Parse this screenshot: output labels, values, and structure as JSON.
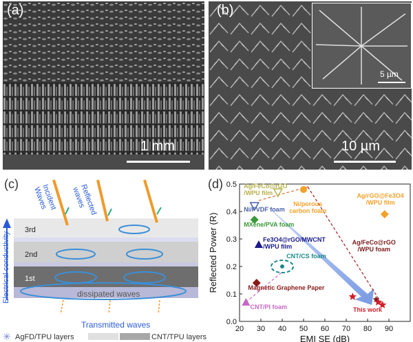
{
  "panel_a": {
    "label": "(a)",
    "scale_text": "1 mm"
  },
  "panel_b": {
    "label": "(b)",
    "scale_text": "10 µm",
    "inset_scale_text": "5 µm"
  },
  "panel_c": {
    "label": "(c)",
    "incident": "Incident\nWaves",
    "reflected": "Reflected\nwaves",
    "axis": "Electrical conductivity",
    "layers": [
      "3rd",
      "2nd",
      "1st"
    ],
    "dissipated": "dissipated waves",
    "transmitted": "Transmitted waves",
    "legend": {
      "agfd": "AgFD/TPU layers",
      "cnt": "CNT/TPU layers"
    }
  },
  "panel_d": {
    "label": "(d)"
  },
  "chart_data": {
    "type": "scatter",
    "xlabel": "EMI SE (dB)",
    "ylabel": "Reflected Power (R)",
    "xlim": [
      20,
      100
    ],
    "ylim": [
      0.0,
      0.5
    ],
    "xticks": [
      20,
      30,
      40,
      50,
      60,
      70,
      80,
      90
    ],
    "yticks": [
      0.0,
      0.1,
      0.2,
      0.3,
      0.4,
      0.5
    ],
    "points": [
      {
        "label": "Ag/FeCo@rGO\n/WPU film",
        "x": 38,
        "y": 0.47,
        "color": "#b6b04a",
        "marker": "triangle-down"
      },
      {
        "label": "Ni/PVDF foam",
        "x": 27,
        "y": 0.42,
        "color": "#4a5fa8",
        "marker": "triangle-down"
      },
      {
        "label": "MXene/PVA foam",
        "x": 27,
        "y": 0.37,
        "color": "#3a9a3a",
        "marker": "diamond"
      },
      {
        "label": "Ni/porous\ncarbon foam",
        "x": 50,
        "y": 0.48,
        "color": "#f3a12b",
        "marker": "circle"
      },
      {
        "label": "Ag/rGO@Fe3O4\n/WPU film",
        "x": 88,
        "y": 0.39,
        "color": "#f3a12b",
        "marker": "diamond"
      },
      {
        "label": "Fe3O4@rGO/MWCNT\n/WPU film",
        "x": 29,
        "y": 0.28,
        "color": "#1a1a8c",
        "marker": "triangle"
      },
      {
        "label": "Ag/FeCo@rGO\n/WPU foam",
        "x": 84,
        "y": 0.08,
        "color": "#7a1a1a",
        "marker": "star"
      },
      {
        "label": "CNT/CS foam",
        "x": 40,
        "y": 0.2,
        "color": "#1a8a8a",
        "marker": "ellipse"
      },
      {
        "label": "Magnetic Graphene Paper",
        "x": 28,
        "y": 0.14,
        "color": "#8a1a1a",
        "marker": "diamond"
      },
      {
        "label": "CNT/PI foam",
        "x": 23,
        "y": 0.07,
        "color": "#c46ac4",
        "marker": "triangle"
      },
      {
        "label": "This work",
        "x": 75,
        "y": 0.08,
        "color": "#d21e2b",
        "marker": "star"
      }
    ],
    "this_work_points": [
      {
        "x": 73,
        "y": 0.09
      },
      {
        "x": 85,
        "y": 0.07
      },
      {
        "x": 87,
        "y": 0.06
      }
    ]
  }
}
